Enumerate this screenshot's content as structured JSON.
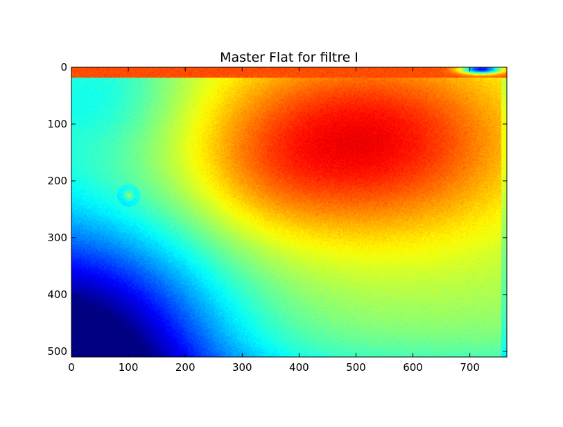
{
  "chart_data": {
    "type": "heatmap",
    "title": "Master Flat for filtre I",
    "xlabel": "",
    "ylabel": "",
    "xlim": [
      0,
      765
    ],
    "ylim": [
      510,
      0
    ],
    "xticks": [
      0,
      100,
      200,
      300,
      400,
      500,
      600,
      700
    ],
    "yticks": [
      0,
      100,
      200,
      300,
      400,
      500
    ],
    "xtick_labels": [
      "0",
      "100",
      "200",
      "300",
      "400",
      "500",
      "600",
      "700"
    ],
    "ytick_labels": [
      "0",
      "100",
      "200",
      "300",
      "400",
      "500"
    ],
    "colormap": "jet",
    "grid": false,
    "image_width": 765,
    "image_height": 510,
    "description": "",
    "features": {
      "bright_region": {
        "center_x": 510,
        "center_y": 130,
        "level": 0.87
      },
      "dark_corner": {
        "center_x": 30,
        "center_y": 495,
        "level": 0.1
      },
      "dust_ring": {
        "center_x": 100,
        "center_y": 225,
        "radius": 20
      },
      "top_right_dark_spot": {
        "center_x": 720,
        "center_y": 3,
        "level": 0.12
      }
    }
  }
}
